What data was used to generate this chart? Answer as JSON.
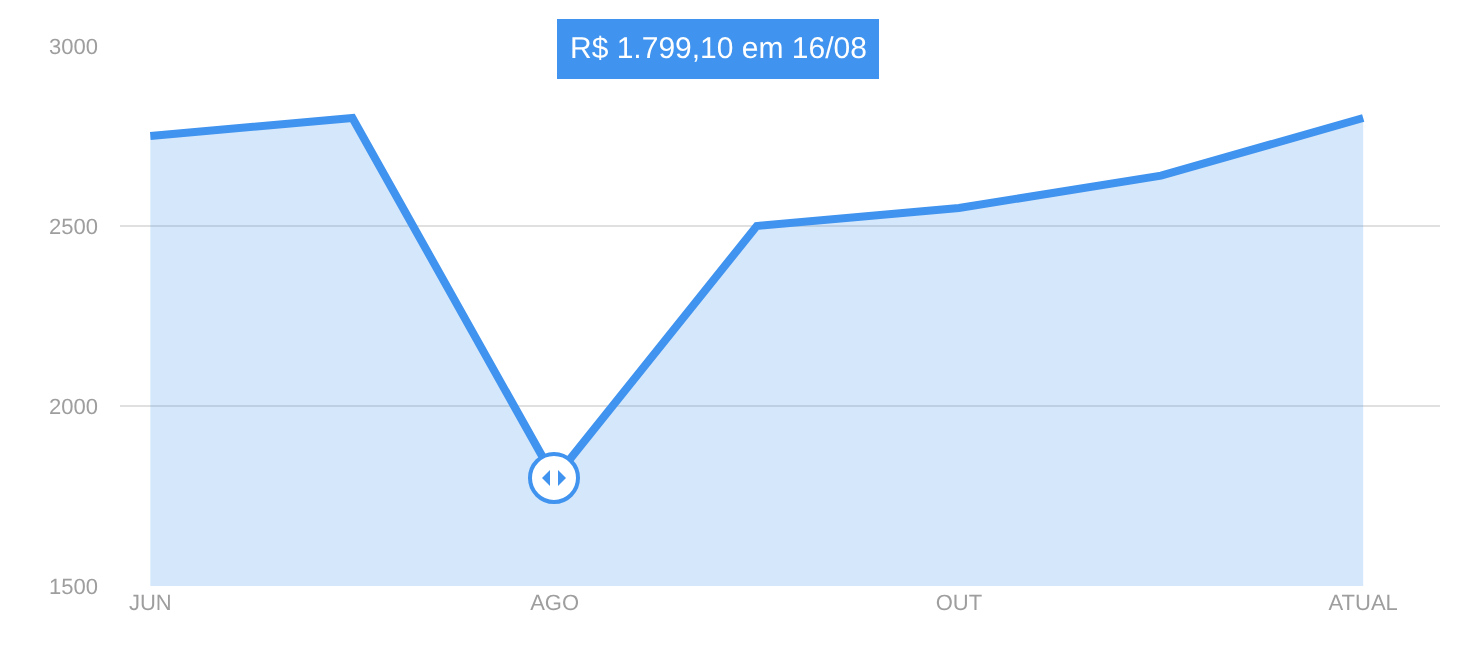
{
  "chart_data": {
    "type": "area",
    "categories": [
      "JUN",
      null,
      "AGO",
      null,
      "OUT",
      null,
      "ATUAL"
    ],
    "series": [
      {
        "color": "#4093ee",
        "values": [
          2750,
          2800,
          1799.1,
          2500,
          2550,
          2640,
          2800
        ]
      }
    ],
    "ylim": [
      1500,
      3000
    ],
    "yticks": [
      1500,
      2000,
      2500,
      3000
    ],
    "grid": "y",
    "marker": "none",
    "annotations": [
      "R$ 1.799,10 em 16/08"
    ]
  }
}
